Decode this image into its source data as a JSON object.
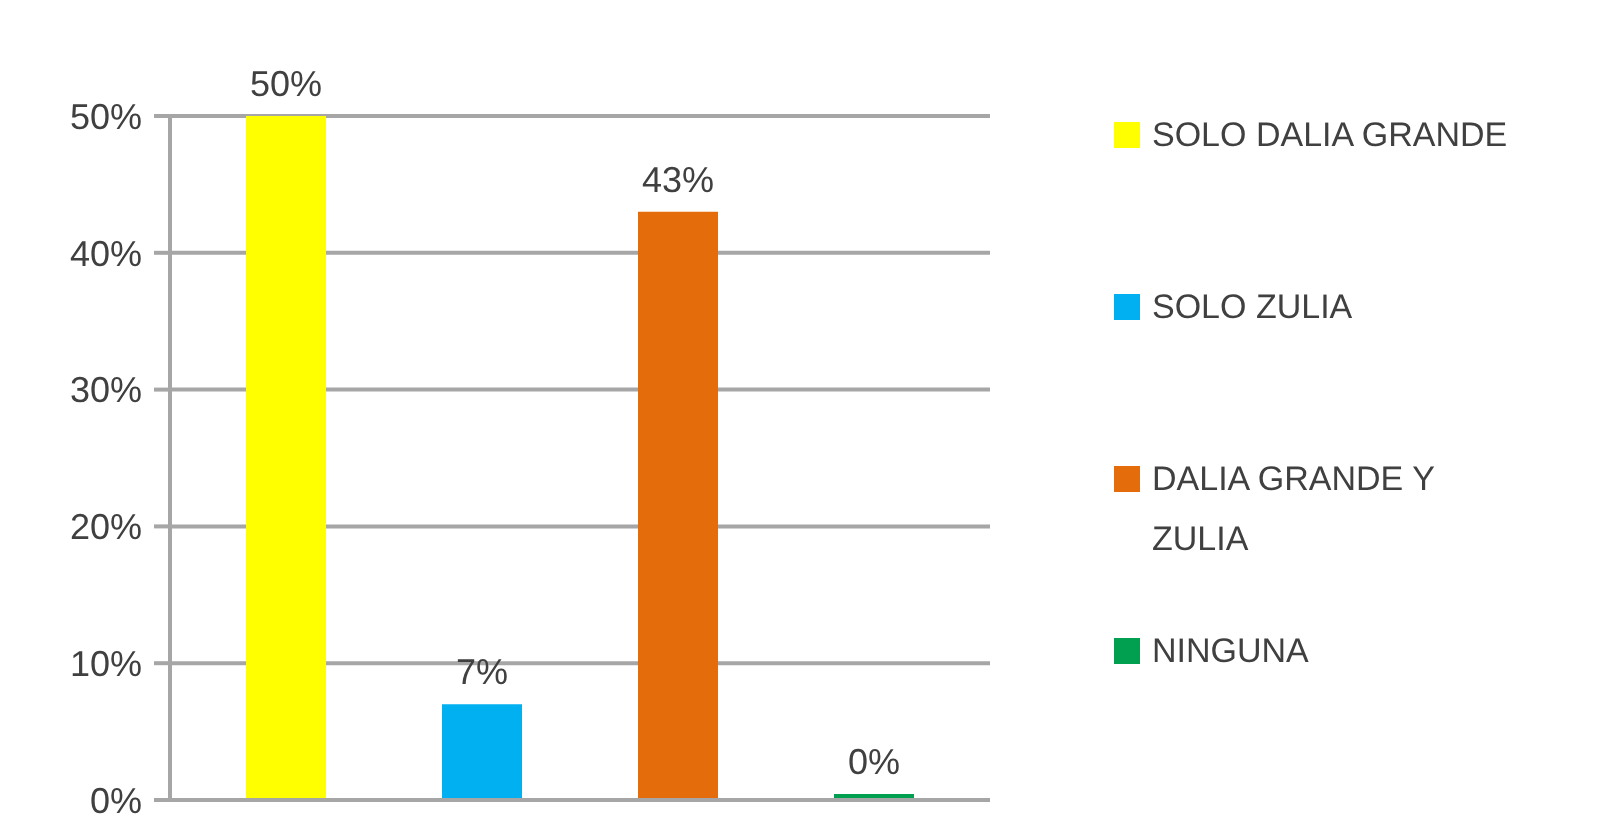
{
  "chart_data": {
    "type": "bar",
    "categories": [
      null
    ],
    "series": [
      {
        "name": "SOLO DALIA GRANDE",
        "color": "#ffff00",
        "values": [
          50
        ],
        "value_labels": [
          "50%"
        ]
      },
      {
        "name": "SOLO ZULIA",
        "color": "#00b0f0",
        "values": [
          7
        ],
        "value_labels": [
          "7%"
        ]
      },
      {
        "name": "DALIA GRANDE Y ZULIA",
        "color": "#e46c0a",
        "values": [
          43
        ],
        "value_labels": [
          "43%"
        ]
      },
      {
        "name": "NINGUNA",
        "color": "#00a050",
        "values": [
          0
        ],
        "value_labels": [
          "0%"
        ]
      }
    ],
    "ylim": [
      0,
      50
    ],
    "yticks": [
      {
        "value": 0,
        "label": "0%"
      },
      {
        "value": 10,
        "label": "10%"
      },
      {
        "value": 20,
        "label": "20%"
      },
      {
        "value": 30,
        "label": "30%"
      },
      {
        "value": 40,
        "label": "40%"
      },
      {
        "value": 50,
        "label": "50%"
      }
    ],
    "grid": "y",
    "legend": "right",
    "tick_labels": "y"
  }
}
